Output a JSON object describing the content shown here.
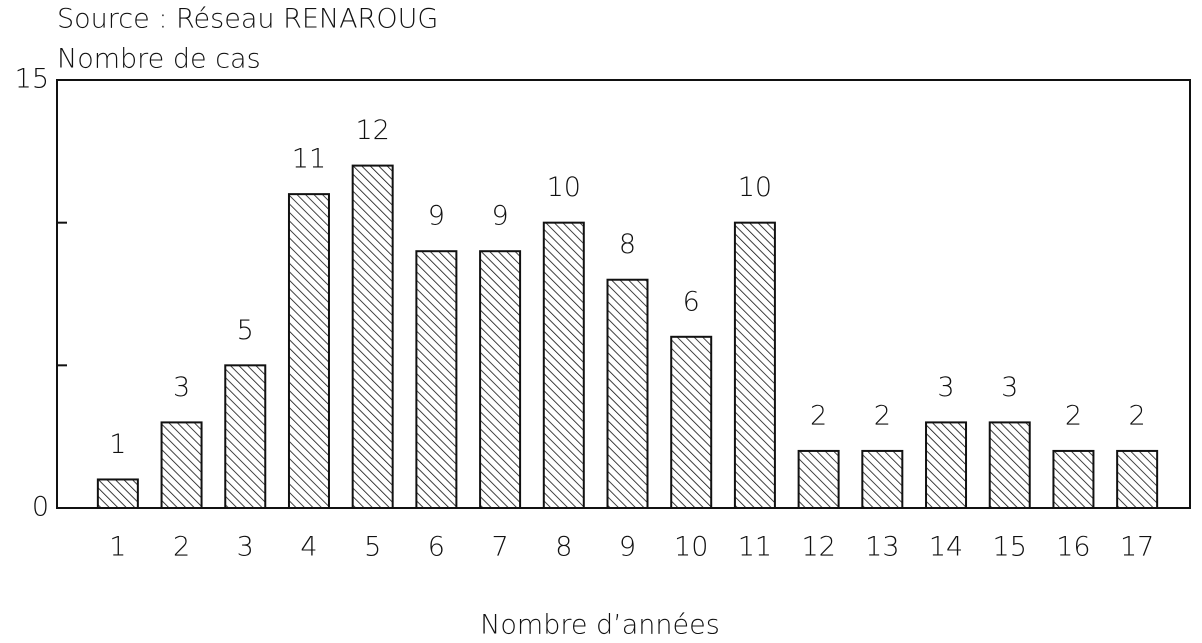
{
  "chart_data": {
    "type": "bar",
    "subtitle": "Source : Réseau RENAROUG",
    "y_label": "Nombre de cas",
    "x_label": "Nombre d’années",
    "categories": [
      "1",
      "2",
      "3",
      "4",
      "5",
      "6",
      "7",
      "8",
      "9",
      "10",
      "11",
      "12",
      "13",
      "14",
      "15",
      "16",
      "17"
    ],
    "values": [
      1,
      3,
      5,
      11,
      12,
      9,
      9,
      10,
      8,
      6,
      10,
      2,
      2,
      3,
      3,
      2,
      2
    ],
    "color": "#111111",
    "ylim": [
      0,
      15
    ],
    "yticks": [
      0,
      {
        "value": 5,
        "label": null
      },
      {
        "value": 10,
        "label": null
      },
      15
    ],
    "grid": false
  }
}
